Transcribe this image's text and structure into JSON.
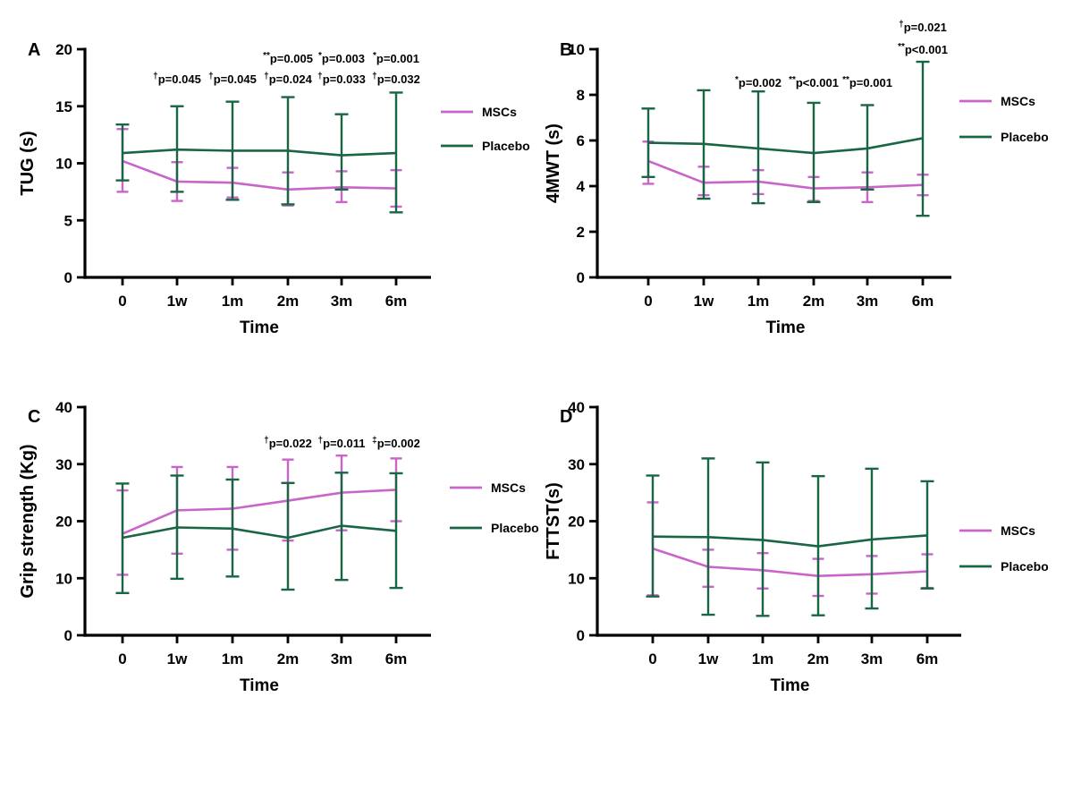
{
  "figure": {
    "background": "#ffffff"
  },
  "colors": {
    "mscs": "#C965C9",
    "placebo": "#186643",
    "axis": "#000000"
  },
  "legend_labels": {
    "mscs": "MSCs",
    "placebo": "Placebo"
  },
  "chart_data": [
    {
      "panel_label": "A",
      "type": "line",
      "ylabel": "TUG (s)",
      "xlabel": "Time",
      "categories": [
        "0",
        "1w",
        "1m",
        "2m",
        "3m",
        "6m"
      ],
      "ylim": [
        0,
        20
      ],
      "yticks": [
        0,
        5,
        10,
        15,
        20
      ],
      "grid": false,
      "legend_position": "right",
      "series": [
        {
          "name": "MSCs",
          "color": "mscs",
          "values": [
            10.2,
            8.4,
            8.3,
            7.7,
            7.9,
            7.8
          ],
          "err_low": [
            7.5,
            6.7,
            7.0,
            6.3,
            6.6,
            6.2
          ],
          "err_high": [
            13.0,
            10.1,
            9.6,
            9.2,
            9.3,
            9.4
          ]
        },
        {
          "name": "Placebo",
          "color": "placebo",
          "values": [
            10.9,
            11.2,
            11.1,
            11.1,
            10.7,
            10.9
          ],
          "err_low": [
            8.5,
            7.5,
            6.8,
            6.4,
            7.7,
            5.7
          ],
          "err_high": [
            13.4,
            15.0,
            15.4,
            15.8,
            14.3,
            16.2
          ]
        }
      ],
      "annotations": [
        {
          "cat": 1,
          "row": 0,
          "sup": "†",
          "text": "p=0.045"
        },
        {
          "cat": 2,
          "row": 0,
          "sup": "†",
          "text": "p=0.045"
        },
        {
          "cat": 3,
          "row": 0,
          "sup": "†",
          "text": "p=0.024"
        },
        {
          "cat": 4,
          "row": 0,
          "sup": "†",
          "text": "p=0.033"
        },
        {
          "cat": 5,
          "row": 0,
          "sup": "†",
          "text": "p=0.032"
        },
        {
          "cat": 3,
          "row": 1,
          "sup": "**",
          "text": "p=0.005"
        },
        {
          "cat": 4,
          "row": 1,
          "sup": "*",
          "text": "p=0.003"
        },
        {
          "cat": 5,
          "row": 1,
          "sup": "*",
          "text": "p=0.001"
        }
      ],
      "annotation_rows_y": [
        73,
        50
      ]
    },
    {
      "panel_label": "B",
      "type": "line",
      "ylabel": "4MWT (s)",
      "xlabel": "Time",
      "categories": [
        "0",
        "1w",
        "1m",
        "2m",
        "3m",
        "6m"
      ],
      "ylim": [
        0,
        10
      ],
      "yticks": [
        0,
        2,
        4,
        6,
        8,
        10
      ],
      "grid": false,
      "legend_position": "right",
      "series": [
        {
          "name": "MSCs",
          "color": "mscs",
          "values": [
            5.1,
            4.15,
            4.2,
            3.9,
            3.95,
            4.05
          ],
          "err_low": [
            4.1,
            3.6,
            3.65,
            3.35,
            3.3,
            3.6
          ],
          "err_high": [
            5.95,
            4.85,
            4.7,
            4.4,
            4.6,
            4.5
          ]
        },
        {
          "name": "Placebo",
          "color": "placebo",
          "values": [
            5.9,
            5.85,
            5.65,
            5.45,
            5.65,
            6.1
          ],
          "err_low": [
            4.4,
            3.45,
            3.25,
            3.3,
            3.85,
            2.7
          ],
          "err_high": [
            7.4,
            8.2,
            8.15,
            7.65,
            7.55,
            9.45
          ]
        }
      ],
      "annotations": [
        {
          "cat": 2,
          "row": 0,
          "sup": "*",
          "text": "p=0.002"
        },
        {
          "cat": 3,
          "row": 0,
          "sup": "**",
          "text": "p<0.001"
        },
        {
          "cat": 4,
          "row": 0,
          "sup": "**",
          "text": "p=0.001"
        },
        {
          "cat": 5,
          "row": 2,
          "sup": "†",
          "text": "p=0.021"
        },
        {
          "cat": 5,
          "row": 1,
          "sup": "**",
          "text": "p<0.001"
        }
      ],
      "annotation_rows_y": [
        77,
        40,
        15
      ]
    },
    {
      "panel_label": "C",
      "type": "line",
      "ylabel": "Grip strength (Kg)",
      "xlabel": "Time",
      "categories": [
        "0",
        "1w",
        "1m",
        "2m",
        "3m",
        "6m"
      ],
      "ylim": [
        0,
        40
      ],
      "yticks": [
        0,
        10,
        20,
        30,
        40
      ],
      "grid": false,
      "legend_position": "right",
      "series": [
        {
          "name": "MSCs",
          "color": "mscs",
          "values": [
            17.8,
            21.9,
            22.2,
            23.6,
            25.0,
            25.5
          ],
          "err_low": [
            10.6,
            14.3,
            15.0,
            16.6,
            18.4,
            20.0
          ],
          "err_high": [
            25.4,
            29.5,
            29.5,
            30.8,
            31.5,
            31.0
          ]
        },
        {
          "name": "Placebo",
          "color": "placebo",
          "values": [
            17.1,
            18.9,
            18.7,
            17.1,
            19.2,
            18.3
          ],
          "err_low": [
            7.4,
            9.9,
            10.3,
            8.0,
            9.7,
            8.3
          ],
          "err_high": [
            26.6,
            28.0,
            27.3,
            26.7,
            28.5,
            28.4
          ]
        }
      ],
      "annotations": [
        {
          "cat": 3,
          "row": 0,
          "sup": "†",
          "text": "p=0.022"
        },
        {
          "cat": 4,
          "row": 0,
          "sup": "†",
          "text": "p=0.011"
        },
        {
          "cat": 5,
          "row": 0,
          "sup": "‡",
          "text": "p=0.002"
        }
      ],
      "annotation_rows_y": [
        70
      ]
    },
    {
      "panel_label": "D",
      "type": "line",
      "ylabel": "FTTST(s)",
      "xlabel": "Time",
      "categories": [
        "0",
        "1w",
        "1m",
        "2m",
        "3m",
        "6m"
      ],
      "ylim": [
        0,
        40
      ],
      "yticks": [
        0,
        10,
        20,
        30,
        40
      ],
      "grid": false,
      "legend_position": "right",
      "series": [
        {
          "name": "MSCs",
          "color": "mscs",
          "values": [
            15.2,
            12.0,
            11.4,
            10.4,
            10.7,
            11.2
          ],
          "err_low": [
            7.0,
            8.5,
            8.2,
            6.9,
            7.3,
            8.3
          ],
          "err_high": [
            23.3,
            15.0,
            14.4,
            13.4,
            13.9,
            14.2
          ]
        },
        {
          "name": "Placebo",
          "color": "placebo",
          "values": [
            17.3,
            17.2,
            16.7,
            15.6,
            16.8,
            17.5
          ],
          "err_low": [
            6.8,
            3.6,
            3.4,
            3.5,
            4.7,
            8.2
          ],
          "err_high": [
            28.0,
            31.0,
            30.3,
            27.9,
            29.2,
            27.0
          ]
        }
      ],
      "annotations": [],
      "annotation_rows_y": []
    }
  ]
}
